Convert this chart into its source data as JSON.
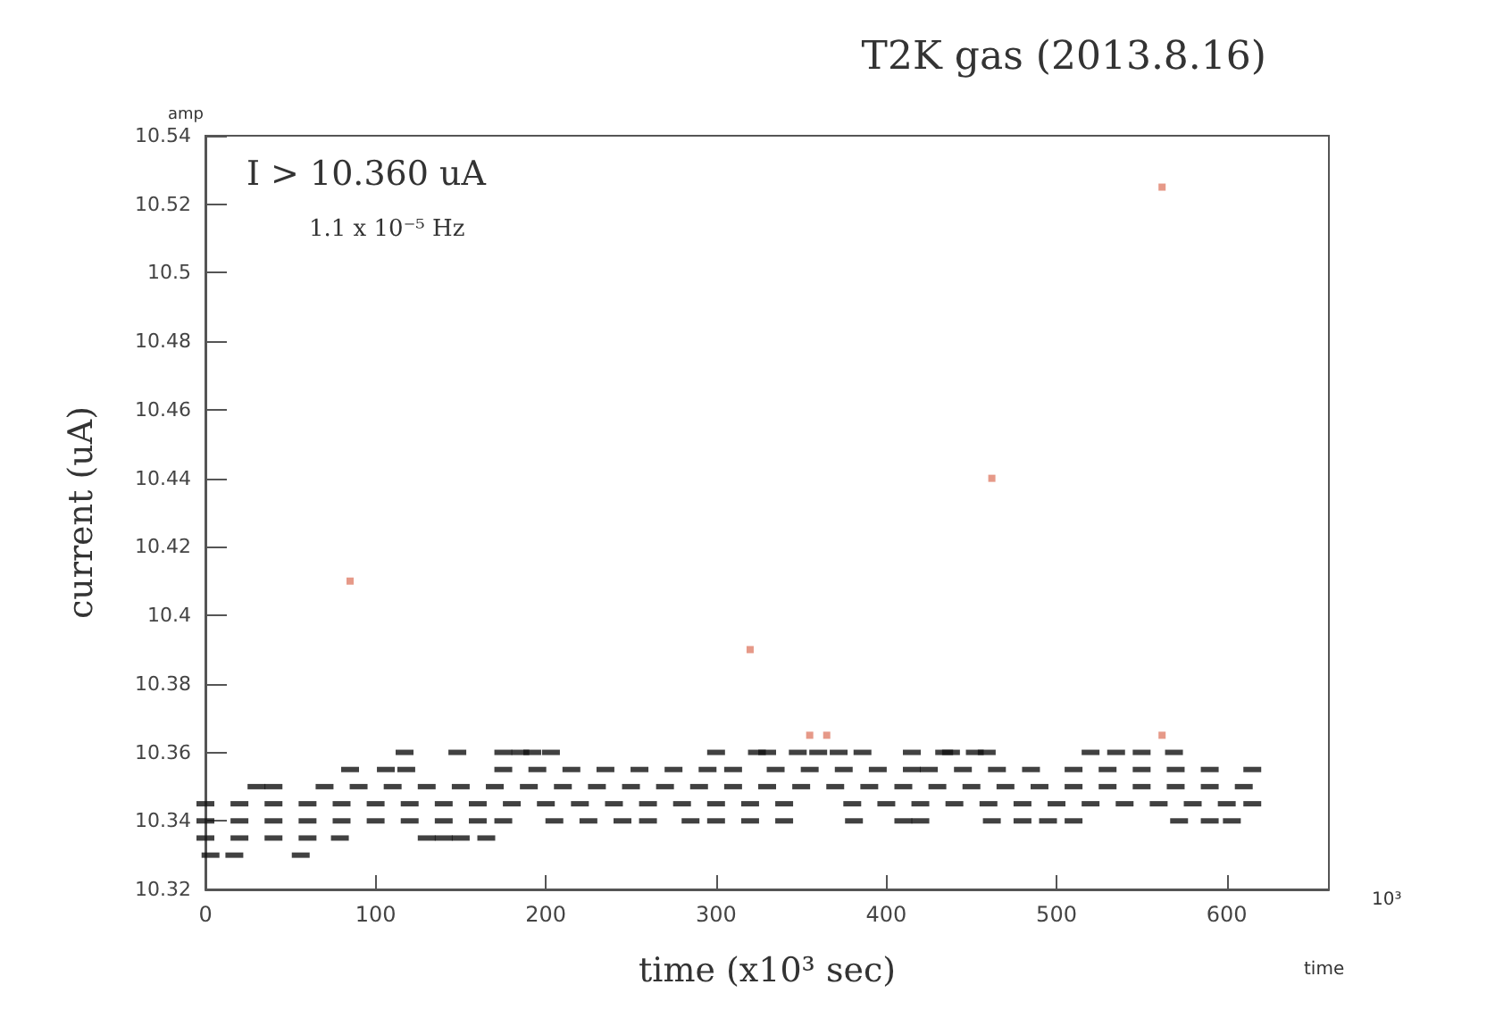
{
  "chart_data": {
    "type": "scatter",
    "title": "T2K gas (2013.8.16)",
    "xlabel": "time (x10³ sec)",
    "ylabel": "current (uA)",
    "annotations": [
      "I > 10.360 uA",
      "1.1 x 10⁻⁵ Hz",
      "amp",
      "10³",
      "time"
    ],
    "xlim": [
      0,
      660
    ],
    "xticks": [
      0,
      100,
      200,
      300,
      400,
      500,
      600
    ],
    "ylim": [
      10.32,
      10.54
    ],
    "yticks": [
      10.32,
      10.34,
      10.36,
      10.38,
      10.4,
      10.42,
      10.44,
      10.46,
      10.48,
      10.5,
      10.52,
      10.54
    ],
    "grid": false,
    "marker": "square",
    "series": [
      {
        "color": "#111111",
        "x": [
          0,
          20,
          40,
          60,
          80,
          100,
          120,
          140,
          160,
          180,
          200,
          220,
          240,
          260,
          280,
          300,
          320,
          340,
          380,
          400,
          420,
          440,
          460,
          480,
          500,
          520,
          540,
          560,
          580,
          600,
          615,
          30,
          40,
          70,
          90,
          110,
          130,
          150,
          170,
          190,
          210,
          230,
          250,
          270,
          290,
          310,
          330,
          350,
          370,
          390,
          410,
          430,
          450,
          470,
          490,
          510,
          530,
          550,
          570,
          590,
          610,
          0,
          20,
          40,
          60,
          80,
          100,
          120,
          140,
          160,
          175,
          205,
          225,
          245,
          260,
          285,
          300,
          320,
          340,
          381,
          410,
          420,
          462,
          480,
          495,
          510,
          572,
          590,
          603,
          85,
          106,
          118,
          175,
          195,
          215,
          235,
          255,
          275,
          295,
          310,
          335,
          355,
          375,
          395,
          415,
          425,
          445,
          465,
          485,
          510,
          530,
          550,
          570,
          590,
          615,
          0,
          20,
          40,
          60,
          79,
          130,
          140,
          150,
          165,
          3,
          17,
          56,
          117,
          148,
          175,
          185,
          192,
          203,
          300,
          324,
          330,
          348,
          360,
          372,
          386,
          415,
          434,
          438,
          452,
          459,
          520,
          535,
          550,
          569
        ],
        "values": [
          10.345,
          10.345,
          10.345,
          10.345,
          10.345,
          10.345,
          10.345,
          10.345,
          10.345,
          10.345,
          10.345,
          10.345,
          10.345,
          10.345,
          10.345,
          10.345,
          10.345,
          10.345,
          10.345,
          10.345,
          10.345,
          10.345,
          10.345,
          10.345,
          10.345,
          10.345,
          10.345,
          10.345,
          10.345,
          10.345,
          10.345,
          10.35,
          10.35,
          10.35,
          10.35,
          10.35,
          10.35,
          10.35,
          10.35,
          10.35,
          10.35,
          10.35,
          10.35,
          10.35,
          10.35,
          10.35,
          10.35,
          10.35,
          10.35,
          10.35,
          10.35,
          10.35,
          10.35,
          10.35,
          10.35,
          10.35,
          10.35,
          10.35,
          10.35,
          10.35,
          10.35,
          10.34,
          10.34,
          10.34,
          10.34,
          10.34,
          10.34,
          10.34,
          10.34,
          10.34,
          10.34,
          10.34,
          10.34,
          10.34,
          10.34,
          10.34,
          10.34,
          10.34,
          10.34,
          10.34,
          10.34,
          10.34,
          10.34,
          10.34,
          10.34,
          10.34,
          10.34,
          10.34,
          10.34,
          10.355,
          10.355,
          10.355,
          10.355,
          10.355,
          10.355,
          10.355,
          10.355,
          10.355,
          10.355,
          10.355,
          10.355,
          10.355,
          10.355,
          10.355,
          10.355,
          10.355,
          10.355,
          10.355,
          10.355,
          10.355,
          10.355,
          10.355,
          10.355,
          10.355,
          10.355,
          10.335,
          10.335,
          10.335,
          10.335,
          10.335,
          10.335,
          10.335,
          10.335,
          10.335,
          10.33,
          10.33,
          10.33,
          10.36,
          10.36,
          10.36,
          10.36,
          10.36,
          10.36,
          10.36,
          10.36,
          10.36,
          10.36,
          10.36,
          10.36,
          10.36,
          10.36,
          10.36,
          10.36,
          10.36,
          10.36,
          10.36,
          10.36,
          10.36,
          10.36
        ]
      },
      {
        "color": "#e0806a",
        "x": [
          85,
          320,
          355,
          365,
          462,
          562,
          562
        ],
        "values": [
          10.41,
          10.39,
          10.365,
          10.365,
          10.44,
          10.525,
          10.365
        ]
      }
    ]
  }
}
